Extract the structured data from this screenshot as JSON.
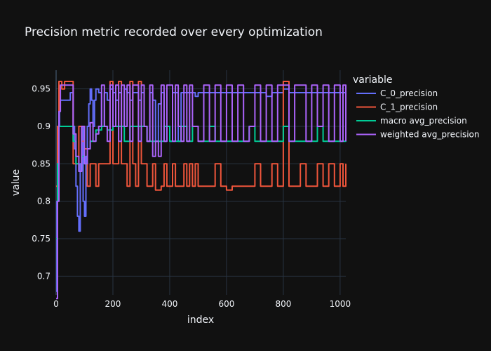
{
  "chart_data": {
    "type": "line",
    "title": "Precision metric recorded over every optimization",
    "xlabel": "index",
    "ylabel": "value",
    "xlim": [
      0,
      1020
    ],
    "ylim": [
      0.675,
      0.975
    ],
    "xticks": [
      0,
      200,
      400,
      600,
      800,
      1000
    ],
    "xtick_labels": [
      "0",
      "200",
      "400",
      "600",
      "800",
      "1000"
    ],
    "yticks": [
      0.7,
      0.75,
      0.8,
      0.85,
      0.9,
      0.95
    ],
    "ytick_labels": [
      "0.7",
      "0.75",
      "0.8",
      "0.85",
      "0.9",
      "0.95"
    ],
    "grid": true,
    "legend": {
      "title": "variable",
      "position": "right"
    },
    "series": [
      {
        "name": "C_0_precision",
        "color": "#636efa",
        "x": [
          0,
          3,
          8,
          12,
          20,
          30,
          40,
          50,
          60,
          65,
          70,
          75,
          80,
          85,
          90,
          95,
          100,
          105,
          110,
          115,
          120,
          125,
          130,
          135,
          140,
          150,
          160,
          170,
          180,
          190,
          200,
          210,
          220,
          230,
          240,
          250,
          260,
          270,
          280,
          290,
          300,
          310,
          320,
          330,
          340,
          350,
          360,
          370,
          380,
          390,
          400,
          410,
          420,
          430,
          440,
          450,
          460,
          470,
          480,
          490,
          500,
          520,
          540,
          560,
          580,
          600,
          620,
          640,
          660,
          680,
          700,
          720,
          740,
          760,
          780,
          800,
          820,
          840,
          860,
          880,
          900,
          920,
          940,
          960,
          980,
          1000,
          1010,
          1020
        ],
        "y": [
          0.68,
          0.8,
          0.9,
          0.935,
          0.935,
          0.935,
          0.935,
          0.945,
          0.9,
          0.87,
          0.82,
          0.78,
          0.76,
          0.85,
          0.9,
          0.8,
          0.78,
          0.86,
          0.9,
          0.93,
          0.95,
          0.935,
          0.9,
          0.935,
          0.95,
          0.945,
          0.9,
          0.945,
          0.935,
          0.95,
          0.945,
          0.935,
          0.945,
          0.9,
          0.95,
          0.945,
          0.935,
          0.945,
          0.945,
          0.935,
          0.945,
          0.9,
          0.88,
          0.945,
          0.935,
          0.88,
          0.93,
          0.945,
          0.88,
          0.9,
          0.88,
          0.945,
          0.945,
          0.88,
          0.945,
          0.945,
          0.945,
          0.945,
          0.945,
          0.94,
          0.945,
          0.945,
          0.945,
          0.945,
          0.945,
          0.945,
          0.945,
          0.945,
          0.945,
          0.945,
          0.945,
          0.945,
          0.94,
          0.945,
          0.945,
          0.95,
          0.945,
          0.945,
          0.945,
          0.945,
          0.945,
          0.945,
          0.945,
          0.945,
          0.945,
          0.945,
          0.945,
          0.945
        ]
      },
      {
        "name": "C_1_precision",
        "color": "#ef553b",
        "x": [
          0,
          5,
          10,
          15,
          20,
          30,
          40,
          50,
          60,
          70,
          80,
          90,
          100,
          110,
          120,
          130,
          140,
          150,
          160,
          170,
          180,
          190,
          200,
          210,
          220,
          230,
          240,
          250,
          260,
          270,
          280,
          290,
          300,
          310,
          320,
          330,
          340,
          350,
          360,
          370,
          380,
          390,
          400,
          410,
          420,
          430,
          440,
          450,
          460,
          470,
          480,
          490,
          500,
          520,
          540,
          560,
          580,
          600,
          620,
          640,
          660,
          680,
          700,
          720,
          740,
          760,
          780,
          800,
          820,
          840,
          860,
          880,
          900,
          920,
          940,
          960,
          980,
          1000,
          1010,
          1020
        ],
        "y": [
          0.82,
          0.9,
          0.96,
          0.96,
          0.95,
          0.96,
          0.96,
          0.96,
          0.85,
          0.85,
          0.9,
          0.88,
          0.87,
          0.82,
          0.85,
          0.85,
          0.82,
          0.85,
          0.85,
          0.85,
          0.85,
          0.96,
          0.85,
          0.85,
          0.96,
          0.85,
          0.85,
          0.82,
          0.96,
          0.85,
          0.82,
          0.96,
          0.85,
          0.85,
          0.82,
          0.82,
          0.85,
          0.815,
          0.815,
          0.82,
          0.85,
          0.82,
          0.82,
          0.85,
          0.82,
          0.82,
          0.82,
          0.85,
          0.82,
          0.85,
          0.82,
          0.85,
          0.82,
          0.82,
          0.82,
          0.85,
          0.82,
          0.815,
          0.82,
          0.82,
          0.82,
          0.82,
          0.85,
          0.82,
          0.82,
          0.85,
          0.82,
          0.96,
          0.82,
          0.82,
          0.85,
          0.82,
          0.82,
          0.85,
          0.82,
          0.85,
          0.82,
          0.85,
          0.82,
          0.85
        ]
      },
      {
        "name": "macro avg_precision",
        "color": "#00cc96",
        "x": [
          0,
          5,
          10,
          20,
          30,
          40,
          50,
          60,
          70,
          80,
          90,
          100,
          110,
          120,
          140,
          160,
          180,
          200,
          220,
          240,
          260,
          280,
          300,
          320,
          340,
          360,
          380,
          400,
          420,
          440,
          460,
          480,
          500,
          520,
          540,
          560,
          580,
          600,
          620,
          640,
          660,
          680,
          700,
          720,
          740,
          760,
          780,
          800,
          820,
          840,
          860,
          880,
          900,
          920,
          940,
          960,
          980,
          1000,
          1020
        ],
        "y": [
          0.75,
          0.85,
          0.9,
          0.9,
          0.9,
          0.9,
          0.9,
          0.88,
          0.85,
          0.84,
          0.86,
          0.85,
          0.87,
          0.88,
          0.895,
          0.9,
          0.895,
          0.9,
          0.9,
          0.88,
          0.9,
          0.9,
          0.9,
          0.88,
          0.88,
          0.88,
          0.9,
          0.88,
          0.88,
          0.9,
          0.88,
          0.9,
          0.88,
          0.88,
          0.9,
          0.88,
          0.88,
          0.88,
          0.88,
          0.88,
          0.88,
          0.9,
          0.88,
          0.88,
          0.88,
          0.88,
          0.88,
          0.9,
          0.88,
          0.88,
          0.88,
          0.88,
          0.88,
          0.9,
          0.88,
          0.88,
          0.88,
          0.88,
          0.9
        ]
      },
      {
        "name": "weighted avg_precision",
        "color": "#ab63fa",
        "x": [
          0,
          5,
          10,
          15,
          20,
          30,
          40,
          50,
          60,
          70,
          80,
          90,
          100,
          110,
          120,
          130,
          140,
          150,
          160,
          170,
          180,
          190,
          200,
          210,
          220,
          230,
          240,
          250,
          260,
          270,
          280,
          290,
          300,
          310,
          320,
          330,
          340,
          350,
          360,
          370,
          380,
          390,
          400,
          410,
          420,
          430,
          440,
          450,
          460,
          470,
          480,
          500,
          520,
          540,
          560,
          580,
          600,
          620,
          640,
          660,
          680,
          700,
          720,
          740,
          760,
          780,
          800,
          820,
          840,
          860,
          880,
          900,
          920,
          940,
          960,
          980,
          1000,
          1010,
          1020
        ],
        "y": [
          0.67,
          0.8,
          0.92,
          0.955,
          0.955,
          0.955,
          0.955,
          0.955,
          0.89,
          0.86,
          0.84,
          0.9,
          0.85,
          0.87,
          0.905,
          0.88,
          0.89,
          0.9,
          0.955,
          0.9,
          0.88,
          0.955,
          0.9,
          0.955,
          0.88,
          0.955,
          0.9,
          0.955,
          0.88,
          0.955,
          0.955,
          0.88,
          0.955,
          0.9,
          0.88,
          0.955,
          0.86,
          0.88,
          0.86,
          0.955,
          0.88,
          0.955,
          0.955,
          0.88,
          0.955,
          0.9,
          0.88,
          0.955,
          0.88,
          0.955,
          0.9,
          0.88,
          0.955,
          0.88,
          0.955,
          0.88,
          0.955,
          0.88,
          0.955,
          0.88,
          0.9,
          0.955,
          0.88,
          0.955,
          0.88,
          0.955,
          0.955,
          0.88,
          0.955,
          0.955,
          0.88,
          0.955,
          0.9,
          0.955,
          0.88,
          0.955,
          0.88,
          0.955,
          0.88
        ]
      }
    ]
  }
}
